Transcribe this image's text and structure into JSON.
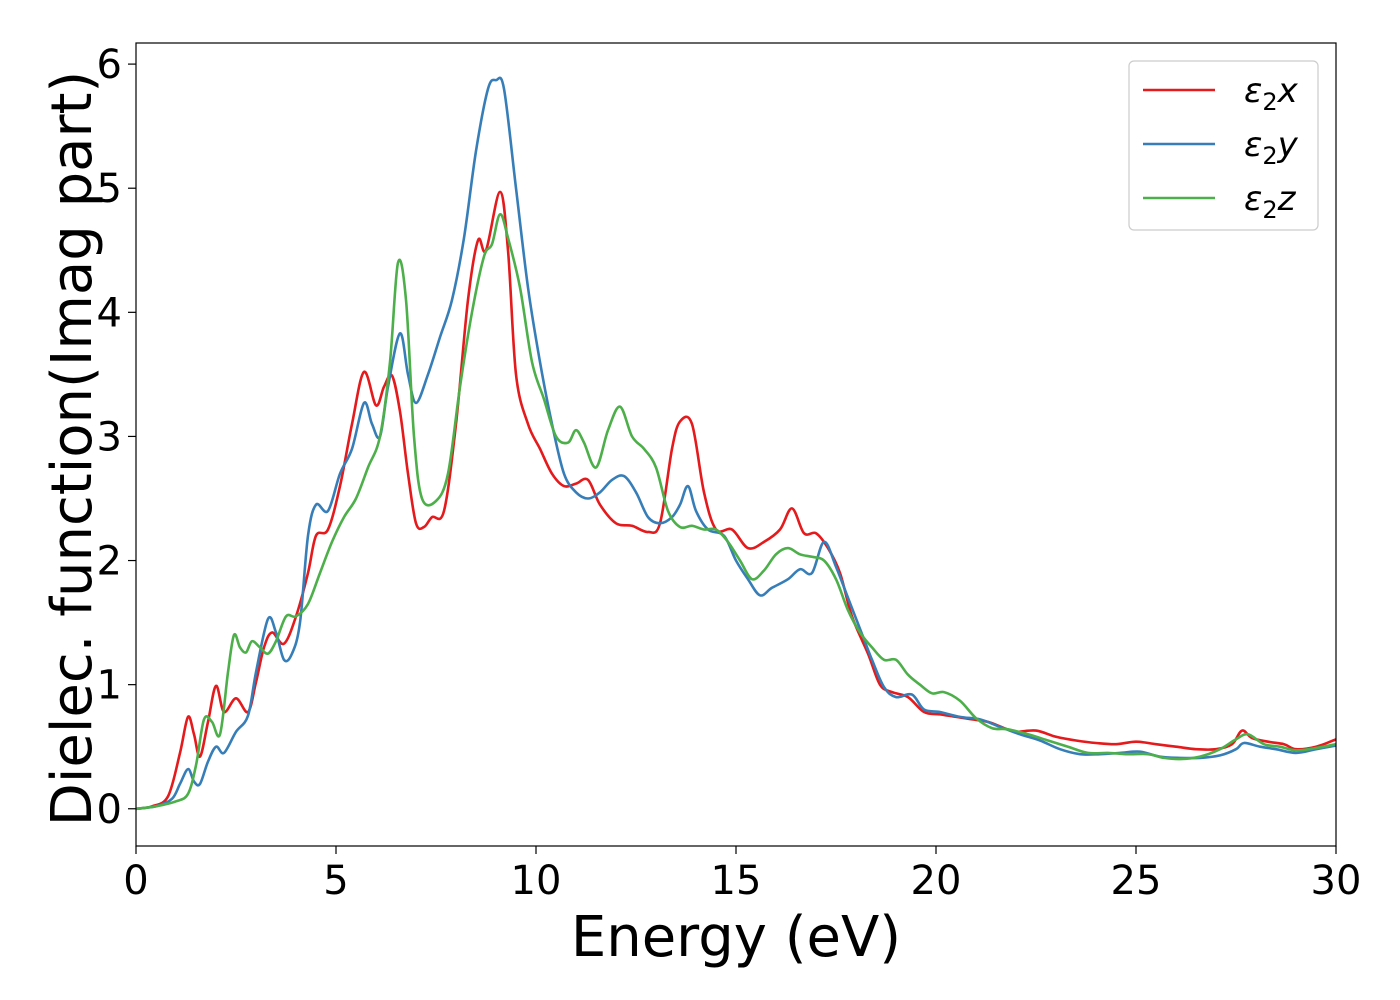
{
  "chart_data": {
    "type": "line",
    "xlabel": "Energy (eV)",
    "ylabel": "Dielec. function(Imag part)",
    "xlim": [
      0,
      30
    ],
    "ylim": [
      -0.3,
      6.17
    ],
    "x_ticks": [
      0,
      5,
      10,
      15,
      20,
      25,
      30
    ],
    "y_ticks": [
      0,
      1,
      2,
      3,
      4,
      5,
      6
    ],
    "grid": false,
    "legend_position": "top-right",
    "series": [
      {
        "name": "ε₂x",
        "legend_base": "ε",
        "legend_sub": "2",
        "legend_suffix": "x",
        "color": "#e41a1c",
        "points": [
          [
            0,
            0
          ],
          [
            0.4,
            0.02
          ],
          [
            0.8,
            0.1
          ],
          [
            1.1,
            0.45
          ],
          [
            1.3,
            0.74
          ],
          [
            1.45,
            0.6
          ],
          [
            1.6,
            0.42
          ],
          [
            1.8,
            0.7
          ],
          [
            2.0,
            0.99
          ],
          [
            2.2,
            0.78
          ],
          [
            2.5,
            0.89
          ],
          [
            2.8,
            0.78
          ],
          [
            3.0,
            1.02
          ],
          [
            3.2,
            1.3
          ],
          [
            3.4,
            1.42
          ],
          [
            3.7,
            1.33
          ],
          [
            4.0,
            1.55
          ],
          [
            4.3,
            1.9
          ],
          [
            4.5,
            2.2
          ],
          [
            4.8,
            2.25
          ],
          [
            5.1,
            2.6
          ],
          [
            5.4,
            3.1
          ],
          [
            5.7,
            3.52
          ],
          [
            6.0,
            3.25
          ],
          [
            6.2,
            3.4
          ],
          [
            6.4,
            3.49
          ],
          [
            6.6,
            3.2
          ],
          [
            6.8,
            2.7
          ],
          [
            7.0,
            2.3
          ],
          [
            7.2,
            2.27
          ],
          [
            7.4,
            2.35
          ],
          [
            7.7,
            2.4
          ],
          [
            8.0,
            3.1
          ],
          [
            8.3,
            4.1
          ],
          [
            8.55,
            4.58
          ],
          [
            8.75,
            4.5
          ],
          [
            9.1,
            4.97
          ],
          [
            9.3,
            4.5
          ],
          [
            9.5,
            3.5
          ],
          [
            9.8,
            3.1
          ],
          [
            10.1,
            2.9
          ],
          [
            10.4,
            2.7
          ],
          [
            10.7,
            2.6
          ],
          [
            11.0,
            2.62
          ],
          [
            11.3,
            2.65
          ],
          [
            11.6,
            2.45
          ],
          [
            12.0,
            2.3
          ],
          [
            12.4,
            2.28
          ],
          [
            12.8,
            2.23
          ],
          [
            13.1,
            2.3
          ],
          [
            13.4,
            2.9
          ],
          [
            13.6,
            3.12
          ],
          [
            13.9,
            3.1
          ],
          [
            14.2,
            2.55
          ],
          [
            14.5,
            2.25
          ],
          [
            14.9,
            2.25
          ],
          [
            15.3,
            2.1
          ],
          [
            15.7,
            2.15
          ],
          [
            16.1,
            2.25
          ],
          [
            16.4,
            2.42
          ],
          [
            16.7,
            2.22
          ],
          [
            17.0,
            2.22
          ],
          [
            17.3,
            2.1
          ],
          [
            17.6,
            1.9
          ],
          [
            17.9,
            1.55
          ],
          [
            18.3,
            1.25
          ],
          [
            18.6,
            1.0
          ],
          [
            18.9,
            0.94
          ],
          [
            19.3,
            0.9
          ],
          [
            19.7,
            0.78
          ],
          [
            20.1,
            0.76
          ],
          [
            20.5,
            0.74
          ],
          [
            20.9,
            0.72
          ],
          [
            21.3,
            0.7
          ],
          [
            21.7,
            0.65
          ],
          [
            22.0,
            0.62
          ],
          [
            22.5,
            0.63
          ],
          [
            23.0,
            0.58
          ],
          [
            23.5,
            0.55
          ],
          [
            24.0,
            0.53
          ],
          [
            24.5,
            0.52
          ],
          [
            25.0,
            0.54
          ],
          [
            25.5,
            0.52
          ],
          [
            26.0,
            0.5
          ],
          [
            26.5,
            0.48
          ],
          [
            27.0,
            0.48
          ],
          [
            27.4,
            0.52
          ],
          [
            27.65,
            0.63
          ],
          [
            27.9,
            0.57
          ],
          [
            28.3,
            0.54
          ],
          [
            28.7,
            0.52
          ],
          [
            29.0,
            0.48
          ],
          [
            29.5,
            0.5
          ],
          [
            30.0,
            0.56
          ]
        ]
      },
      {
        "name": "ε₂y",
        "legend_base": "ε",
        "legend_sub": "2",
        "legend_suffix": "y",
        "color": "#377eb8",
        "points": [
          [
            0,
            0
          ],
          [
            0.5,
            0.02
          ],
          [
            0.9,
            0.08
          ],
          [
            1.1,
            0.2
          ],
          [
            1.3,
            0.32
          ],
          [
            1.45,
            0.22
          ],
          [
            1.6,
            0.2
          ],
          [
            1.8,
            0.38
          ],
          [
            2.0,
            0.5
          ],
          [
            2.2,
            0.45
          ],
          [
            2.5,
            0.62
          ],
          [
            2.8,
            0.75
          ],
          [
            3.0,
            1.1
          ],
          [
            3.3,
            1.53
          ],
          [
            3.5,
            1.42
          ],
          [
            3.7,
            1.2
          ],
          [
            3.9,
            1.25
          ],
          [
            4.1,
            1.5
          ],
          [
            4.3,
            2.2
          ],
          [
            4.5,
            2.45
          ],
          [
            4.8,
            2.4
          ],
          [
            5.1,
            2.7
          ],
          [
            5.4,
            2.9
          ],
          [
            5.7,
            3.27
          ],
          [
            5.9,
            3.1
          ],
          [
            6.1,
            3.0
          ],
          [
            6.3,
            3.4
          ],
          [
            6.6,
            3.83
          ],
          [
            6.8,
            3.5
          ],
          [
            7.0,
            3.27
          ],
          [
            7.3,
            3.5
          ],
          [
            7.6,
            3.8
          ],
          [
            7.9,
            4.1
          ],
          [
            8.2,
            4.6
          ],
          [
            8.5,
            5.3
          ],
          [
            8.8,
            5.8
          ],
          [
            9.0,
            5.87
          ],
          [
            9.2,
            5.8
          ],
          [
            9.5,
            5.0
          ],
          [
            9.8,
            4.2
          ],
          [
            10.1,
            3.6
          ],
          [
            10.4,
            3.1
          ],
          [
            10.7,
            2.7
          ],
          [
            11.0,
            2.55
          ],
          [
            11.3,
            2.5
          ],
          [
            11.6,
            2.55
          ],
          [
            11.9,
            2.65
          ],
          [
            12.2,
            2.68
          ],
          [
            12.5,
            2.55
          ],
          [
            12.8,
            2.35
          ],
          [
            13.1,
            2.3
          ],
          [
            13.4,
            2.35
          ],
          [
            13.6,
            2.45
          ],
          [
            13.8,
            2.6
          ],
          [
            14.0,
            2.4
          ],
          [
            14.3,
            2.25
          ],
          [
            14.7,
            2.2
          ],
          [
            15.0,
            2.0
          ],
          [
            15.3,
            1.85
          ],
          [
            15.6,
            1.72
          ],
          [
            15.9,
            1.78
          ],
          [
            16.3,
            1.85
          ],
          [
            16.6,
            1.93
          ],
          [
            16.9,
            1.9
          ],
          [
            17.2,
            2.15
          ],
          [
            17.5,
            1.95
          ],
          [
            17.8,
            1.7
          ],
          [
            18.1,
            1.45
          ],
          [
            18.4,
            1.2
          ],
          [
            18.7,
            0.98
          ],
          [
            19.0,
            0.9
          ],
          [
            19.4,
            0.92
          ],
          [
            19.7,
            0.8
          ],
          [
            20.1,
            0.78
          ],
          [
            20.6,
            0.74
          ],
          [
            21.1,
            0.72
          ],
          [
            21.6,
            0.66
          ],
          [
            22.1,
            0.6
          ],
          [
            22.6,
            0.55
          ],
          [
            23.1,
            0.48
          ],
          [
            23.6,
            0.44
          ],
          [
            24.1,
            0.44
          ],
          [
            24.6,
            0.45
          ],
          [
            25.1,
            0.46
          ],
          [
            25.6,
            0.42
          ],
          [
            26.1,
            0.41
          ],
          [
            26.6,
            0.41
          ],
          [
            27.1,
            0.43
          ],
          [
            27.5,
            0.48
          ],
          [
            27.7,
            0.53
          ],
          [
            28.1,
            0.5
          ],
          [
            28.5,
            0.48
          ],
          [
            29.0,
            0.45
          ],
          [
            29.5,
            0.48
          ],
          [
            30.0,
            0.51
          ]
        ]
      },
      {
        "name": "ε₂z",
        "legend_base": "ε",
        "legend_sub": "2",
        "legend_suffix": "z",
        "color": "#4daf4a",
        "points": [
          [
            0,
            0
          ],
          [
            0.5,
            0.02
          ],
          [
            1.0,
            0.06
          ],
          [
            1.3,
            0.12
          ],
          [
            1.5,
            0.35
          ],
          [
            1.7,
            0.72
          ],
          [
            1.9,
            0.7
          ],
          [
            2.1,
            0.6
          ],
          [
            2.3,
            1.1
          ],
          [
            2.45,
            1.4
          ],
          [
            2.6,
            1.3
          ],
          [
            2.75,
            1.26
          ],
          [
            2.9,
            1.35
          ],
          [
            3.1,
            1.3
          ],
          [
            3.3,
            1.25
          ],
          [
            3.5,
            1.35
          ],
          [
            3.75,
            1.55
          ],
          [
            4.0,
            1.55
          ],
          [
            4.3,
            1.65
          ],
          [
            4.6,
            1.9
          ],
          [
            4.9,
            2.15
          ],
          [
            5.2,
            2.35
          ],
          [
            5.5,
            2.5
          ],
          [
            5.8,
            2.75
          ],
          [
            6.1,
            3.0
          ],
          [
            6.35,
            3.6
          ],
          [
            6.55,
            4.4
          ],
          [
            6.75,
            4.1
          ],
          [
            6.95,
            3.0
          ],
          [
            7.15,
            2.5
          ],
          [
            7.5,
            2.48
          ],
          [
            7.8,
            2.7
          ],
          [
            8.1,
            3.4
          ],
          [
            8.4,
            4.0
          ],
          [
            8.7,
            4.45
          ],
          [
            8.9,
            4.55
          ],
          [
            9.1,
            4.79
          ],
          [
            9.3,
            4.6
          ],
          [
            9.6,
            4.2
          ],
          [
            9.9,
            3.6
          ],
          [
            10.2,
            3.3
          ],
          [
            10.5,
            3.0
          ],
          [
            10.8,
            2.95
          ],
          [
            11.0,
            3.05
          ],
          [
            11.2,
            2.95
          ],
          [
            11.5,
            2.75
          ],
          [
            11.8,
            3.05
          ],
          [
            12.1,
            3.24
          ],
          [
            12.4,
            3.0
          ],
          [
            12.7,
            2.9
          ],
          [
            13.0,
            2.75
          ],
          [
            13.3,
            2.4
          ],
          [
            13.6,
            2.27
          ],
          [
            13.9,
            2.28
          ],
          [
            14.2,
            2.25
          ],
          [
            14.5,
            2.25
          ],
          [
            14.8,
            2.15
          ],
          [
            15.1,
            2.0
          ],
          [
            15.4,
            1.85
          ],
          [
            15.7,
            1.92
          ],
          [
            16.0,
            2.05
          ],
          [
            16.3,
            2.1
          ],
          [
            16.6,
            2.05
          ],
          [
            16.9,
            2.03
          ],
          [
            17.2,
            2.0
          ],
          [
            17.5,
            1.85
          ],
          [
            17.8,
            1.6
          ],
          [
            18.1,
            1.42
          ],
          [
            18.4,
            1.3
          ],
          [
            18.7,
            1.2
          ],
          [
            19.0,
            1.2
          ],
          [
            19.3,
            1.08
          ],
          [
            19.6,
            1.0
          ],
          [
            19.9,
            0.93
          ],
          [
            20.2,
            0.94
          ],
          [
            20.6,
            0.87
          ],
          [
            21.0,
            0.73
          ],
          [
            21.4,
            0.65
          ],
          [
            21.8,
            0.64
          ],
          [
            22.3,
            0.6
          ],
          [
            22.8,
            0.55
          ],
          [
            23.3,
            0.5
          ],
          [
            23.8,
            0.45
          ],
          [
            24.3,
            0.45
          ],
          [
            24.8,
            0.44
          ],
          [
            25.3,
            0.44
          ],
          [
            25.7,
            0.41
          ],
          [
            26.1,
            0.4
          ],
          [
            26.6,
            0.42
          ],
          [
            27.1,
            0.48
          ],
          [
            27.5,
            0.56
          ],
          [
            27.8,
            0.6
          ],
          [
            28.2,
            0.52
          ],
          [
            28.6,
            0.5
          ],
          [
            29.0,
            0.47
          ],
          [
            29.5,
            0.49
          ],
          [
            30.0,
            0.52
          ]
        ]
      }
    ]
  }
}
